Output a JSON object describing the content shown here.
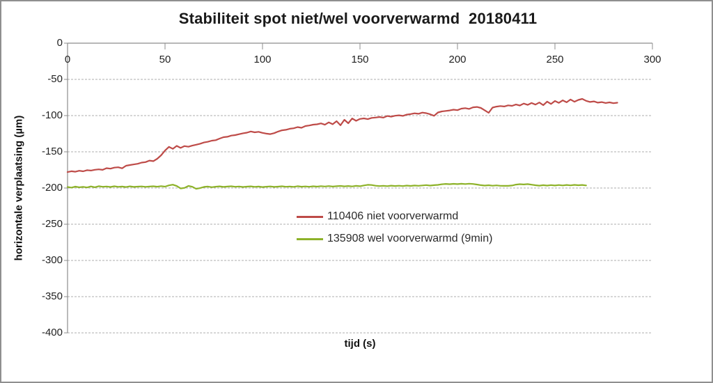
{
  "window": {
    "border_color": "#8f8f8f",
    "background": "#ffffff"
  },
  "chart_data": {
    "type": "line",
    "title": "Stabiliteit spot niet/wel voorverwarmd  20180411",
    "xlabel": "tijd (s)",
    "ylabel": "horizontale verplaatsing (µm)",
    "xlim": [
      0,
      300
    ],
    "ylim": [
      -400,
      0
    ],
    "x_ticks": [
      0,
      50,
      100,
      150,
      200,
      250,
      300
    ],
    "y_ticks": [
      0,
      -50,
      -100,
      -150,
      -200,
      -250,
      -300,
      -350,
      -400
    ],
    "grid": "horizontal dashed gridlines, gray",
    "legend_position": "floating inside plot, center",
    "axis_color": "#8c8c8c",
    "gridline_color": "#adadad",
    "series": [
      {
        "name": "110406 niet voorverwarmd",
        "color": "#BE4B48",
        "points": [
          [
            0,
            -178.0
          ],
          [
            2,
            -176.8
          ],
          [
            4,
            -177.5
          ],
          [
            6,
            -176.2
          ],
          [
            8,
            -176.9
          ],
          [
            10,
            -175.4
          ],
          [
            12,
            -175.9
          ],
          [
            14,
            -174.8
          ],
          [
            16,
            -174.2
          ],
          [
            18,
            -174.9
          ],
          [
            20,
            -172.6
          ],
          [
            22,
            -173.3
          ],
          [
            24,
            -171.8
          ],
          [
            26,
            -171.3
          ],
          [
            28,
            -172.8
          ],
          [
            30,
            -169.2
          ],
          [
            32,
            -168.3
          ],
          [
            34,
            -167.4
          ],
          [
            36,
            -166.5
          ],
          [
            38,
            -164.9
          ],
          [
            40,
            -164.2
          ],
          [
            42,
            -162.1
          ],
          [
            44,
            -162.9
          ],
          [
            46,
            -159.6
          ],
          [
            48,
            -154.8
          ],
          [
            50,
            -148.3
          ],
          [
            52,
            -143.2
          ],
          [
            54,
            -145.9
          ],
          [
            56,
            -141.8
          ],
          [
            58,
            -144.6
          ],
          [
            60,
            -142.1
          ],
          [
            62,
            -143.0
          ],
          [
            64,
            -141.4
          ],
          [
            66,
            -140.2
          ],
          [
            68,
            -138.8
          ],
          [
            70,
            -137.1
          ],
          [
            72,
            -136.2
          ],
          [
            74,
            -134.6
          ],
          [
            76,
            -133.9
          ],
          [
            78,
            -131.7
          ],
          [
            80,
            -129.8
          ],
          [
            82,
            -129.2
          ],
          [
            84,
            -127.6
          ],
          [
            86,
            -126.9
          ],
          [
            88,
            -125.7
          ],
          [
            90,
            -124.4
          ],
          [
            92,
            -123.6
          ],
          [
            94,
            -121.9
          ],
          [
            96,
            -123.1
          ],
          [
            98,
            -122.4
          ],
          [
            100,
            -123.8
          ],
          [
            102,
            -124.9
          ],
          [
            104,
            -125.6
          ],
          [
            106,
            -124.2
          ],
          [
            108,
            -122.0
          ],
          [
            110,
            -120.3
          ],
          [
            112,
            -119.6
          ],
          [
            114,
            -118.2
          ],
          [
            116,
            -117.5
          ],
          [
            118,
            -115.9
          ],
          [
            120,
            -116.8
          ],
          [
            122,
            -114.4
          ],
          [
            124,
            -113.7
          ],
          [
            126,
            -112.5
          ],
          [
            128,
            -112.0
          ],
          [
            130,
            -110.8
          ],
          [
            132,
            -112.6
          ],
          [
            134,
            -109.3
          ],
          [
            136,
            -111.9
          ],
          [
            138,
            -107.7
          ],
          [
            140,
            -113.4
          ],
          [
            142,
            -105.8
          ],
          [
            144,
            -110.6
          ],
          [
            146,
            -103.9
          ],
          [
            148,
            -107.2
          ],
          [
            150,
            -104.6
          ],
          [
            152,
            -103.8
          ],
          [
            154,
            -104.9
          ],
          [
            156,
            -103.2
          ],
          [
            158,
            -102.7
          ],
          [
            160,
            -101.9
          ],
          [
            162,
            -102.8
          ],
          [
            164,
            -100.6
          ],
          [
            166,
            -101.4
          ],
          [
            168,
            -100.2
          ],
          [
            170,
            -99.6
          ],
          [
            172,
            -100.4
          ],
          [
            174,
            -98.7
          ],
          [
            176,
            -97.9
          ],
          [
            178,
            -96.8
          ],
          [
            180,
            -97.5
          ],
          [
            182,
            -95.9
          ],
          [
            184,
            -96.6
          ],
          [
            186,
            -98.2
          ],
          [
            188,
            -100.3
          ],
          [
            190,
            -95.7
          ],
          [
            192,
            -94.2
          ],
          [
            194,
            -93.6
          ],
          [
            196,
            -92.9
          ],
          [
            198,
            -91.8
          ],
          [
            200,
            -92.5
          ],
          [
            202,
            -90.4
          ],
          [
            204,
            -89.7
          ],
          [
            206,
            -90.8
          ],
          [
            208,
            -88.6
          ],
          [
            210,
            -88.1
          ],
          [
            212,
            -89.4
          ],
          [
            214,
            -92.7
          ],
          [
            216,
            -96.2
          ],
          [
            218,
            -88.9
          ],
          [
            220,
            -87.6
          ],
          [
            222,
            -86.8
          ],
          [
            224,
            -87.4
          ],
          [
            226,
            -85.9
          ],
          [
            228,
            -86.5
          ],
          [
            230,
            -84.7
          ],
          [
            232,
            -86.1
          ],
          [
            234,
            -83.4
          ],
          [
            236,
            -85.2
          ],
          [
            238,
            -82.6
          ],
          [
            240,
            -84.8
          ],
          [
            242,
            -81.9
          ],
          [
            244,
            -85.6
          ],
          [
            246,
            -80.7
          ],
          [
            248,
            -83.9
          ],
          [
            250,
            -79.8
          ],
          [
            252,
            -82.4
          ],
          [
            254,
            -78.9
          ],
          [
            256,
            -81.6
          ],
          [
            258,
            -77.8
          ],
          [
            260,
            -80.9
          ],
          [
            262,
            -78.4
          ],
          [
            264,
            -76.9
          ],
          [
            266,
            -79.6
          ],
          [
            268,
            -81.2
          ],
          [
            270,
            -80.4
          ],
          [
            272,
            -82.1
          ],
          [
            274,
            -81.3
          ],
          [
            276,
            -82.6
          ],
          [
            278,
            -81.7
          ],
          [
            280,
            -82.9
          ],
          [
            282,
            -82.2
          ]
        ]
      },
      {
        "name": "135908 wel voorverwarmd (9min)",
        "color": "#8DB229",
        "points": [
          [
            0,
            -198.6
          ],
          [
            2,
            -199.4
          ],
          [
            4,
            -198.1
          ],
          [
            6,
            -199.0
          ],
          [
            8,
            -198.4
          ],
          [
            10,
            -199.2
          ],
          [
            12,
            -197.8
          ],
          [
            14,
            -198.9
          ],
          [
            16,
            -197.5
          ],
          [
            18,
            -198.3
          ],
          [
            20,
            -197.9
          ],
          [
            22,
            -198.6
          ],
          [
            24,
            -197.6
          ],
          [
            26,
            -198.4
          ],
          [
            28,
            -198.0
          ],
          [
            30,
            -198.7
          ],
          [
            32,
            -197.7
          ],
          [
            34,
            -198.5
          ],
          [
            36,
            -198.1
          ],
          [
            38,
            -197.8
          ],
          [
            40,
            -198.4
          ],
          [
            42,
            -198.0
          ],
          [
            44,
            -197.6
          ],
          [
            46,
            -198.2
          ],
          [
            48,
            -197.4
          ],
          [
            50,
            -198.1
          ],
          [
            52,
            -196.3
          ],
          [
            54,
            -195.4
          ],
          [
            56,
            -197.2
          ],
          [
            58,
            -200.6
          ],
          [
            60,
            -199.8
          ],
          [
            62,
            -197.1
          ],
          [
            64,
            -198.3
          ],
          [
            66,
            -201.2
          ],
          [
            68,
            -200.1
          ],
          [
            70,
            -198.5
          ],
          [
            72,
            -198.0
          ],
          [
            74,
            -198.8
          ],
          [
            76,
            -198.2
          ],
          [
            78,
            -197.7
          ],
          [
            80,
            -198.5
          ],
          [
            82,
            -198.0
          ],
          [
            84,
            -197.6
          ],
          [
            86,
            -198.3
          ],
          [
            88,
            -197.9
          ],
          [
            90,
            -198.6
          ],
          [
            92,
            -198.1
          ],
          [
            94,
            -197.7
          ],
          [
            96,
            -198.4
          ],
          [
            98,
            -198.0
          ],
          [
            100,
            -198.7
          ],
          [
            102,
            -198.2
          ],
          [
            104,
            -197.8
          ],
          [
            106,
            -198.5
          ],
          [
            108,
            -198.1
          ],
          [
            110,
            -197.6
          ],
          [
            112,
            -198.3
          ],
          [
            114,
            -197.9
          ],
          [
            116,
            -198.4
          ],
          [
            118,
            -197.5
          ],
          [
            120,
            -198.2
          ],
          [
            122,
            -197.8
          ],
          [
            124,
            -198.3
          ],
          [
            126,
            -197.6
          ],
          [
            128,
            -198.1
          ],
          [
            130,
            -197.4
          ],
          [
            132,
            -197.9
          ],
          [
            134,
            -197.3
          ],
          [
            136,
            -198.0
          ],
          [
            138,
            -197.5
          ],
          [
            140,
            -197.1
          ],
          [
            142,
            -197.7
          ],
          [
            144,
            -197.2
          ],
          [
            146,
            -197.8
          ],
          [
            148,
            -197.0
          ],
          [
            150,
            -197.5
          ],
          [
            152,
            -196.4
          ],
          [
            154,
            -195.6
          ],
          [
            156,
            -195.9
          ],
          [
            158,
            -196.8
          ],
          [
            160,
            -197.3
          ],
          [
            162,
            -196.9
          ],
          [
            164,
            -197.4
          ],
          [
            166,
            -196.7
          ],
          [
            168,
            -197.2
          ],
          [
            170,
            -196.8
          ],
          [
            172,
            -197.3
          ],
          [
            174,
            -196.6
          ],
          [
            176,
            -197.1
          ],
          [
            178,
            -196.5
          ],
          [
            180,
            -196.9
          ],
          [
            182,
            -196.4
          ],
          [
            184,
            -196.0
          ],
          [
            186,
            -196.6
          ],
          [
            188,
            -196.1
          ],
          [
            190,
            -195.7
          ],
          [
            192,
            -194.8
          ],
          [
            194,
            -194.3
          ],
          [
            196,
            -194.7
          ],
          [
            198,
            -194.2
          ],
          [
            200,
            -194.6
          ],
          [
            202,
            -194.1
          ],
          [
            204,
            -194.5
          ],
          [
            206,
            -194.0
          ],
          [
            208,
            -194.4
          ],
          [
            210,
            -195.2
          ],
          [
            212,
            -196.1
          ],
          [
            214,
            -196.6
          ],
          [
            216,
            -196.2
          ],
          [
            218,
            -196.8
          ],
          [
            220,
            -196.3
          ],
          [
            222,
            -196.9
          ],
          [
            224,
            -197.0
          ],
          [
            226,
            -197.0
          ],
          [
            228,
            -196.5
          ],
          [
            230,
            -195.3
          ],
          [
            232,
            -194.7
          ],
          [
            234,
            -195.1
          ],
          [
            236,
            -194.6
          ],
          [
            238,
            -195.4
          ],
          [
            240,
            -196.2
          ],
          [
            242,
            -196.7
          ],
          [
            244,
            -196.1
          ],
          [
            246,
            -196.6
          ],
          [
            248,
            -196.0
          ],
          [
            250,
            -196.5
          ],
          [
            252,
            -195.9
          ],
          [
            254,
            -196.4
          ],
          [
            256,
            -195.8
          ],
          [
            258,
            -196.3
          ],
          [
            260,
            -195.7
          ],
          [
            262,
            -196.2
          ],
          [
            264,
            -195.8
          ],
          [
            266,
            -196.4
          ]
        ]
      }
    ]
  }
}
